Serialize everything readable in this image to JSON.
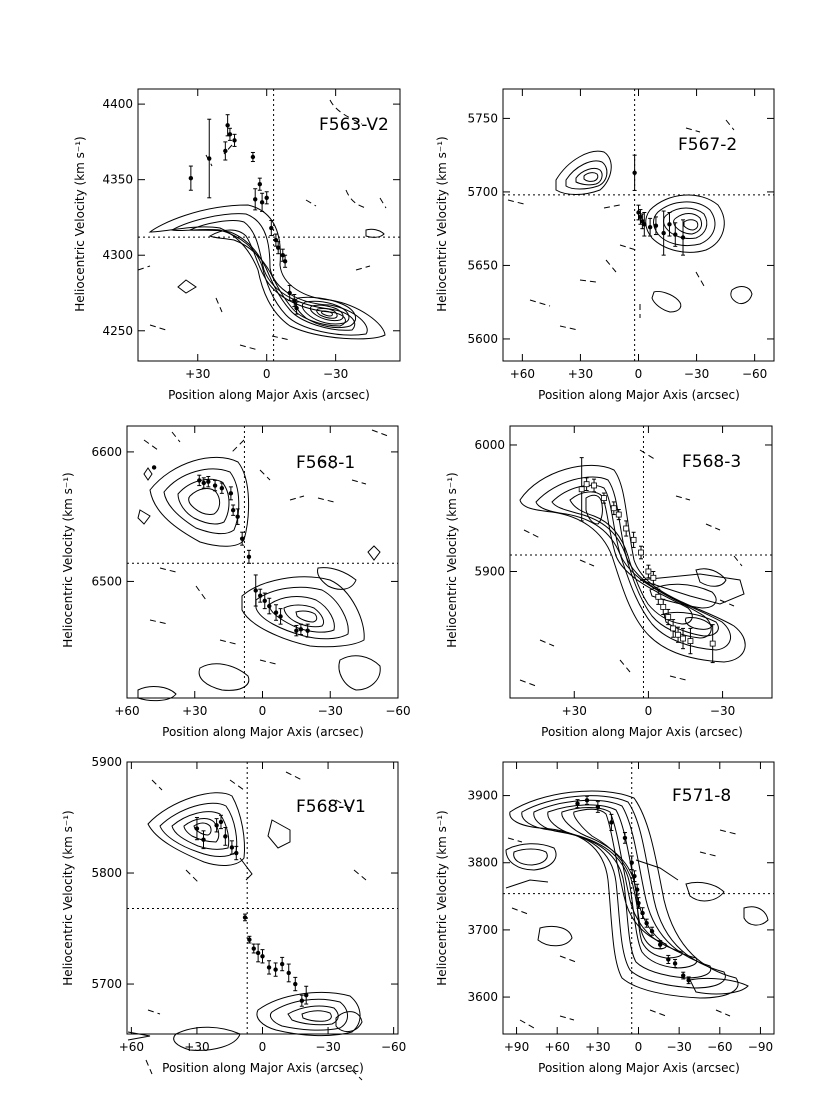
{
  "chart_data": [
    {
      "type": "scatter",
      "title": "F563-V2",
      "xlabel": "Position along Major Axis (arcsec)",
      "ylabel": "Heliocentric Velocity (km s⁻¹)",
      "x_reversed": true,
      "xlim": [
        56,
        -58
      ],
      "ylim": [
        4230,
        4410
      ],
      "xticks": [
        {
          "v": 30,
          "t": "+30"
        },
        {
          "v": 0,
          "t": "0"
        },
        {
          "v": -30,
          "t": "−30"
        }
      ],
      "yticks": [
        4250,
        4300,
        4350,
        4400
      ],
      "center": {
        "x": -3,
        "y": 4312
      },
      "points": [
        {
          "x": 33,
          "y": 4351,
          "e": 8
        },
        {
          "x": 25,
          "y": 4364,
          "e": 26
        },
        {
          "x": 18,
          "y": 4369,
          "e": 6
        },
        {
          "x": 17,
          "y": 4386,
          "e": 7
        },
        {
          "x": 16,
          "y": 4380,
          "e": 4
        },
        {
          "x": 14,
          "y": 4376,
          "e": 4
        },
        {
          "x": 6,
          "y": 4365,
          "e": 3
        },
        {
          "x": 5,
          "y": 4337,
          "e": 7
        },
        {
          "x": 3,
          "y": 4347,
          "e": 4
        },
        {
          "x": 2,
          "y": 4335,
          "e": 6
        },
        {
          "x": 0,
          "y": 4338,
          "e": 4
        },
        {
          "x": -2,
          "y": 4318,
          "e": 5
        },
        {
          "x": -4,
          "y": 4310,
          "e": 4
        },
        {
          "x": -5,
          "y": 4305,
          "e": 4
        },
        {
          "x": -7,
          "y": 4300,
          "e": 4
        },
        {
          "x": -8,
          "y": 4296,
          "e": 4
        },
        {
          "x": -10,
          "y": 4275,
          "e": 5
        },
        {
          "x": -12,
          "y": 4270,
          "e": 4
        },
        {
          "x": -13,
          "y": 4265,
          "e": 4
        }
      ]
    },
    {
      "type": "scatter",
      "title": "F567-2",
      "xlabel": "Position along Major Axis (arcsec)",
      "ylabel": "Heliocentric Velocity (km s⁻¹)",
      "x_reversed": true,
      "xlim": [
        70,
        -70
      ],
      "ylim": [
        5585,
        5770
      ],
      "xticks": [
        {
          "v": 60,
          "t": "+60"
        },
        {
          "v": 30,
          "t": "+30"
        },
        {
          "v": 0,
          "t": "0"
        },
        {
          "v": -30,
          "t": "−30"
        },
        {
          "v": -60,
          "t": "−60"
        }
      ],
      "yticks": [
        5600,
        5650,
        5700,
        5750
      ],
      "center": {
        "x": 2,
        "y": 5698
      },
      "points": [
        {
          "x": 2,
          "y": 5713,
          "e": 12
        },
        {
          "x": 0,
          "y": 5686,
          "e": 5
        },
        {
          "x": -1,
          "y": 5683,
          "e": 5
        },
        {
          "x": -2,
          "y": 5680,
          "e": 5
        },
        {
          "x": -3,
          "y": 5678,
          "e": 8
        },
        {
          "x": -6,
          "y": 5676,
          "e": 6
        },
        {
          "x": -9,
          "y": 5677,
          "e": 6
        },
        {
          "x": -13,
          "y": 5672,
          "e": 15
        },
        {
          "x": -16,
          "y": 5678,
          "e": 8
        },
        {
          "x": -19,
          "y": 5671,
          "e": 8
        },
        {
          "x": -23,
          "y": 5669,
          "e": 12
        }
      ]
    },
    {
      "type": "scatter",
      "title": "F568-1",
      "xlabel": "Position along Major Axis (arcsec)",
      "ylabel": "Heliocentric Velocity (km s⁻¹)",
      "x_reversed": true,
      "xlim": [
        60,
        -60
      ],
      "ylim": [
        6410,
        6620
      ],
      "xticks": [
        {
          "v": 60,
          "t": "+60"
        },
        {
          "v": 30,
          "t": "+30"
        },
        {
          "v": 0,
          "t": "0"
        },
        {
          "v": -30,
          "t": "−30"
        },
        {
          "v": -60,
          "t": "−60"
        }
      ],
      "yticks": [
        6500,
        6600
      ],
      "center": {
        "x": 8,
        "y": 6514
      },
      "points": [
        {
          "x": 48,
          "y": 6588,
          "e": 0
        },
        {
          "x": 28,
          "y": 6578,
          "e": 4
        },
        {
          "x": 26,
          "y": 6576,
          "e": 4
        },
        {
          "x": 24,
          "y": 6577,
          "e": 4
        },
        {
          "x": 21,
          "y": 6574,
          "e": 4
        },
        {
          "x": 18,
          "y": 6572,
          "e": 4
        },
        {
          "x": 14,
          "y": 6568,
          "e": 5
        },
        {
          "x": 13,
          "y": 6555,
          "e": 4
        },
        {
          "x": 11,
          "y": 6550,
          "e": 6
        },
        {
          "x": 9,
          "y": 6533,
          "e": 5
        },
        {
          "x": 6,
          "y": 6519,
          "e": 5
        },
        {
          "x": 3,
          "y": 6493,
          "e": 12
        },
        {
          "x": 1,
          "y": 6489,
          "e": 5
        },
        {
          "x": -1,
          "y": 6485,
          "e": 6
        },
        {
          "x": -3,
          "y": 6481,
          "e": 6
        },
        {
          "x": -6,
          "y": 6476,
          "e": 6
        },
        {
          "x": -8,
          "y": 6473,
          "e": 6
        },
        {
          "x": -15,
          "y": 6462,
          "e": 4
        },
        {
          "x": -17,
          "y": 6463,
          "e": 4
        },
        {
          "x": -20,
          "y": 6462,
          "e": 5
        }
      ]
    },
    {
      "type": "scatter",
      "title": "F568-3",
      "xlabel": "Position along Major Axis (arcsec)",
      "ylabel": "Heliocentric Velocity (km s⁻¹)",
      "x_reversed": true,
      "xlim": [
        56,
        -50
      ],
      "ylim": [
        5800,
        6015
      ],
      "xticks": [
        {
          "v": 30,
          "t": "+30"
        },
        {
          "v": 0,
          "t": "0"
        },
        {
          "v": -30,
          "t": "−30"
        }
      ],
      "yticks": [
        5900,
        6000
      ],
      "center": {
        "x": 2,
        "y": 5913
      },
      "points": [
        {
          "x": 27,
          "y": 5965,
          "e": 25
        },
        {
          "x": 25,
          "y": 5969,
          "e": 5
        },
        {
          "x": 22,
          "y": 5968,
          "e": 5
        },
        {
          "x": 18,
          "y": 5958,
          "e": 4
        },
        {
          "x": 14,
          "y": 5950,
          "e": 5
        },
        {
          "x": 12,
          "y": 5945,
          "e": 4
        },
        {
          "x": 9,
          "y": 5934,
          "e": 6
        },
        {
          "x": 6,
          "y": 5925,
          "e": 6
        },
        {
          "x": 3,
          "y": 5915,
          "e": 5
        },
        {
          "x": 0,
          "y": 5900,
          "e": 5
        },
        {
          "x": -2,
          "y": 5895,
          "e": 5
        },
        {
          "x": -4,
          "y": 5880,
          "e": 6
        },
        {
          "x": -6,
          "y": 5872,
          "e": 6
        },
        {
          "x": -8,
          "y": 5864,
          "e": 6
        },
        {
          "x": -10,
          "y": 5855,
          "e": 7
        },
        {
          "x": -12,
          "y": 5850,
          "e": 6
        },
        {
          "x": -14,
          "y": 5847,
          "e": 8
        },
        {
          "x": -17,
          "y": 5845,
          "e": 10
        },
        {
          "x": -26,
          "y": 5843,
          "e": 15
        }
      ]
    },
    {
      "type": "scatter",
      "title": "F568-V1",
      "xlabel": "Position along Major Axis (arcsec)",
      "ylabel": "Heliocentric Velocity (km s⁻¹)",
      "x_reversed": true,
      "xlim": [
        62,
        -62
      ],
      "ylim": [
        5655,
        5900
      ],
      "xticks": [
        {
          "v": 60,
          "t": "+60"
        },
        {
          "v": 30,
          "t": "+30"
        },
        {
          "v": 0,
          "t": "0"
        },
        {
          "v": -30,
          "t": "−30"
        },
        {
          "v": -60,
          "t": "−60"
        }
      ],
      "yticks": [
        5700,
        5800,
        5900
      ],
      "center": {
        "x": 7,
        "y": 5768
      },
      "points": [
        {
          "x": 30,
          "y": 5840,
          "e": 10
        },
        {
          "x": 27,
          "y": 5830,
          "e": 8
        },
        {
          "x": 21,
          "y": 5843,
          "e": 6
        },
        {
          "x": 19,
          "y": 5846,
          "e": 6
        },
        {
          "x": 17,
          "y": 5833,
          "e": 8
        },
        {
          "x": 14,
          "y": 5823,
          "e": 6
        },
        {
          "x": 12,
          "y": 5818,
          "e": 6
        },
        {
          "x": 8,
          "y": 5760,
          "e": 3
        },
        {
          "x": 6,
          "y": 5740,
          "e": 3
        },
        {
          "x": 4,
          "y": 5732,
          "e": 4
        },
        {
          "x": 2,
          "y": 5728,
          "e": 8
        },
        {
          "x": 0,
          "y": 5725,
          "e": 6
        },
        {
          "x": -3,
          "y": 5715,
          "e": 6
        },
        {
          "x": -6,
          "y": 5713,
          "e": 6
        },
        {
          "x": -9,
          "y": 5718,
          "e": 6
        },
        {
          "x": -12,
          "y": 5710,
          "e": 8
        },
        {
          "x": -15,
          "y": 5700,
          "e": 6
        },
        {
          "x": -18,
          "y": 5685,
          "e": 5
        },
        {
          "x": -20,
          "y": 5690,
          "e": 8
        }
      ]
    },
    {
      "type": "scatter",
      "title": "F571-8",
      "xlabel": "Position along Major Axis (arcsec)",
      "ylabel": "Heliocentric Velocity (km s⁻¹)",
      "x_reversed": true,
      "xlim": [
        100,
        -100
      ],
      "ylim": [
        3545,
        3950
      ],
      "xticks": [
        {
          "v": 90,
          "t": "+90"
        },
        {
          "v": 60,
          "t": "+60"
        },
        {
          "v": 30,
          "t": "+30"
        },
        {
          "v": 0,
          "t": "0"
        },
        {
          "v": -30,
          "t": "−30"
        },
        {
          "v": -60,
          "t": "−60"
        },
        {
          "v": -90,
          "t": "−90"
        }
      ],
      "yticks": [
        3600,
        3700,
        3800,
        3900
      ],
      "center": {
        "x": 5,
        "y": 3754
      },
      "points": [
        {
          "x": 45,
          "y": 3888,
          "e": 6
        },
        {
          "x": 38,
          "y": 3893,
          "e": 6
        },
        {
          "x": 30,
          "y": 3883,
          "e": 8
        },
        {
          "x": 20,
          "y": 3860,
          "e": 12
        },
        {
          "x": 10,
          "y": 3837,
          "e": 8
        },
        {
          "x": 5,
          "y": 3800,
          "e": 10
        },
        {
          "x": 3,
          "y": 3780,
          "e": 8
        },
        {
          "x": 1,
          "y": 3760,
          "e": 8
        },
        {
          "x": 0,
          "y": 3740,
          "e": 8
        },
        {
          "x": -3,
          "y": 3725,
          "e": 8
        },
        {
          "x": -6,
          "y": 3710,
          "e": 6
        },
        {
          "x": -10,
          "y": 3698,
          "e": 6
        },
        {
          "x": -16,
          "y": 3678,
          "e": 6
        },
        {
          "x": -22,
          "y": 3656,
          "e": 6
        },
        {
          "x": -27,
          "y": 3650,
          "e": 6
        },
        {
          "x": -33,
          "y": 3632,
          "e": 5
        },
        {
          "x": -37,
          "y": 3625,
          "e": 5
        }
      ]
    }
  ]
}
